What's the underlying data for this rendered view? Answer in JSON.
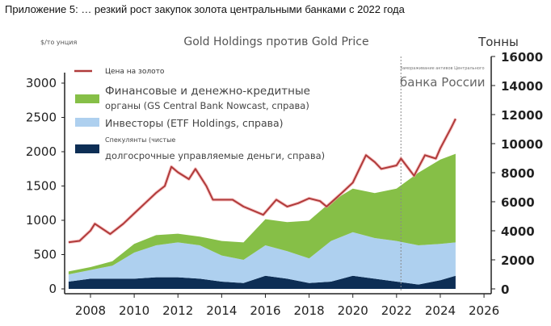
{
  "header": "Приложение 5: … резкий рост закупок золота центральными банками с 2022 года",
  "chart_data": {
    "type": "area",
    "title": "Gold Holdings против Gold Price",
    "ylabel_left": "$/то унция",
    "ylabel_right": "Тонны",
    "xlim": [
      2007,
      2026.5
    ],
    "ylim_left": [
      0,
      3300
    ],
    "ylim_right": [
      0,
      16000
    ],
    "x_ticks": [
      "2008",
      "2010",
      "2012",
      "2014",
      "2016",
      "2018",
      "2020",
      "2022",
      "2024",
      "2026"
    ],
    "y_ticks_left": [
      "0",
      "500",
      "1000",
      "1500",
      "2000",
      "2500",
      "3000"
    ],
    "y_ticks_right": [
      "0",
      "2000",
      "4000",
      "6000",
      "8000",
      "10000",
      "12000",
      "14000",
      "16000"
    ],
    "legend_placement": "top-left",
    "legend": [
      {
        "label": "Цена на золото"
      },
      {
        "label_line1": "Финансовые и денежно-кредитные",
        "label_line2": "органы (GS Central Bank Nowcast, справа)"
      },
      {
        "label": "Инвесторы (ETF Holdings, справа)"
      },
      {
        "label_line1": "Спекулянты (чистые",
        "label_line2": "долгосрочные управляемые деньги, справа)"
      }
    ],
    "annotation": {
      "x": 2022.2,
      "line1": "Замораживание активов Центрального",
      "line2": "банка России"
    },
    "gold_price": {
      "name": "Цена на золото",
      "axis": "left",
      "color": "#b03a3a",
      "x": [
        2007,
        2007.5,
        2008,
        2008.2,
        2008.9,
        2009.5,
        2010,
        2010.5,
        2011,
        2011.4,
        2011.7,
        2012,
        2012.5,
        2012.8,
        2013.3,
        2013.6,
        2014,
        2014.5,
        2015,
        2015.9,
        2016.5,
        2017,
        2017.5,
        2018,
        2018.5,
        2018.8,
        2019.5,
        2020,
        2020.6,
        2021,
        2021.3,
        2022,
        2022.2,
        2022.8,
        2023.3,
        2023.8,
        2024,
        2024.5,
        2024.7
      ],
      "y": [
        680,
        700,
        850,
        950,
        800,
        950,
        1100,
        1250,
        1400,
        1500,
        1780,
        1700,
        1600,
        1750,
        1500,
        1300,
        1300,
        1300,
        1200,
        1080,
        1300,
        1200,
        1250,
        1320,
        1280,
        1200,
        1400,
        1550,
        1950,
        1850,
        1750,
        1800,
        1900,
        1650,
        1950,
        1900,
        2050,
        2350,
        2480
      ]
    },
    "stack_x": [
      2007,
      2008,
      2009,
      2010,
      2011,
      2012,
      2013,
      2014,
      2015,
      2016,
      2017,
      2018,
      2019,
      2020,
      2021,
      2022,
      2023,
      2024,
      2024.7
    ],
    "series": [
      {
        "name": "Спекулянты (чистые долгосрочные управляемые деньги, справа)",
        "axis": "right",
        "color": "#0d2e55",
        "values": [
          500,
          700,
          700,
          700,
          800,
          800,
          700,
          500,
          400,
          900,
          700,
          400,
          500,
          900,
          700,
          500,
          300,
          600,
          900
        ]
      },
      {
        "name": "Инвесторы (ETF Holdings, справа)",
        "axis": "right",
        "color": "#aed0ef",
        "values": [
          500,
          600,
          900,
          1800,
          2200,
          2400,
          2300,
          1800,
          1600,
          2100,
          1900,
          1700,
          2800,
          3000,
          2800,
          2800,
          2700,
          2500,
          2300
        ]
      },
      {
        "name": "Финансовые и денежно-кредитные органы (GS Central Bank Nowcast, справа)",
        "axis": "right",
        "color": "#86bf47",
        "values": [
          200,
          200,
          300,
          600,
          700,
          600,
          600,
          1000,
          1200,
          1800,
          2000,
          2600,
          2700,
          3000,
          3100,
          3600,
          5000,
          5800,
          6100
        ]
      }
    ]
  }
}
